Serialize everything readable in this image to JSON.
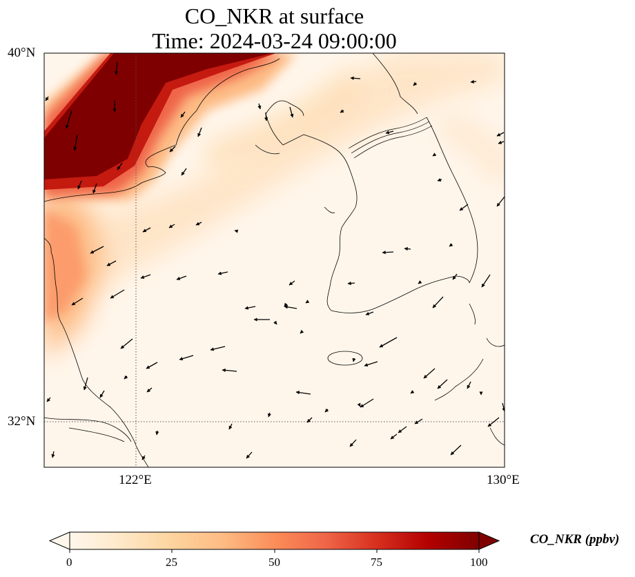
{
  "title": {
    "line1": "CO_NKR at surface",
    "line2": "Time: 2024-03-24 09:00:00"
  },
  "map": {
    "lon_range": [
      119,
      130
    ],
    "lat_range": [
      31,
      40
    ],
    "lat_ticks": [
      {
        "value": 40,
        "label": "40°N"
      },
      {
        "value": 32,
        "label": "32°N"
      }
    ],
    "lon_ticks": [
      {
        "value": 122,
        "label": "122°E"
      },
      {
        "value": 130,
        "label": "130°E"
      }
    ],
    "gridlines": {
      "lon": 122,
      "lat": 32,
      "style": "dotted"
    },
    "features": [
      "coastlines",
      "borders",
      "wind-vectors"
    ]
  },
  "colorbar": {
    "label": "CO_NKR (ppbv)",
    "min": 0,
    "max": 100,
    "ticks": [
      "0",
      "25",
      "50",
      "75",
      "100"
    ],
    "extend": "both",
    "colormap": "OrRd",
    "colors": [
      "#fff7ec",
      "#fee8c8",
      "#fdd49e",
      "#fdbb84",
      "#fc8d59",
      "#ef6548",
      "#d7301f",
      "#b30000",
      "#7f0000"
    ]
  }
}
